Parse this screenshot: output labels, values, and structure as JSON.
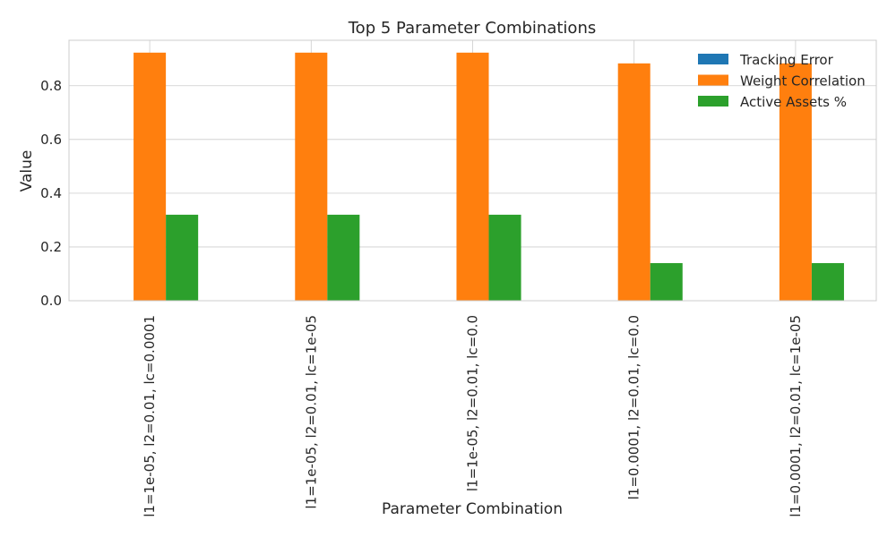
{
  "chart_data": {
    "type": "bar",
    "title": "Top 5 Parameter Combinations",
    "xlabel": "Parameter Combination",
    "ylabel": "Value",
    "categories": [
      "l1=1e-05, l2=0.01, lc=0.0001",
      "l1=1e-05, l2=0.01, lc=1e-05",
      "l1=1e-05, l2=0.01, lc=0.0",
      "l1=0.0001, l2=0.01, lc=0.0",
      "l1=0.0001, l2=0.01, lc=1e-05"
    ],
    "series": [
      {
        "name": "Tracking Error",
        "color": "#1f77b4",
        "values": [
          0.0005,
          0.0005,
          0.0005,
          0.0005,
          0.0005
        ]
      },
      {
        "name": "Weight Correlation",
        "color": "#ff7f0e",
        "values": [
          0.923,
          0.923,
          0.923,
          0.883,
          0.883
        ]
      },
      {
        "name": "Active Assets %",
        "color": "#2ca02c",
        "values": [
          0.32,
          0.32,
          0.32,
          0.14,
          0.14
        ]
      }
    ],
    "yticks": [
      "0.0",
      "0.2",
      "0.4",
      "0.6",
      "0.8"
    ],
    "ylim": [
      0,
      0.969
    ],
    "grid": true,
    "legend_position": "top-right"
  }
}
